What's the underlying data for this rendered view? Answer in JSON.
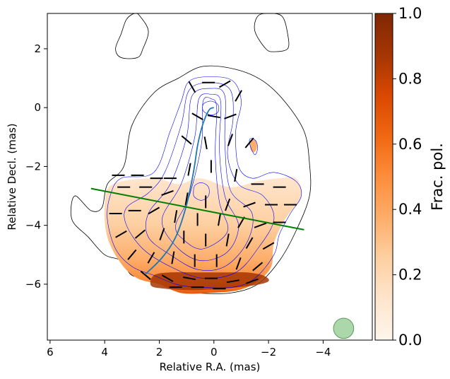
{
  "chart_data": {
    "type": "contour",
    "xlabel": "Relative R.A. (mas)",
    "ylabel": "Relative Decl. (mas)",
    "xlim": [
      6.1,
      -5.8
    ],
    "ylim": [
      -7.9,
      3.2
    ],
    "x_ticks": [
      6,
      4,
      2,
      0,
      -2,
      -4
    ],
    "x_tick_labels": [
      "6",
      "4",
      "2",
      "0",
      "−2",
      "−4"
    ],
    "y_ticks": [
      2,
      0,
      -2,
      -4,
      -6
    ],
    "y_tick_labels": [
      "2",
      "0",
      "−2",
      "−4",
      "−6"
    ],
    "colorbar": {
      "label": "Frac. pol.",
      "range": [
        0.0,
        1.0
      ],
      "ticks": [
        0.0,
        0.2,
        0.4,
        0.6,
        0.8,
        1.0
      ],
      "tick_labels": [
        "0.0",
        "0.2",
        "0.4",
        "0.6",
        "0.8",
        "1.0"
      ],
      "colormap": "Oranges",
      "color_low": "#fff5eb",
      "color_high": "#7f2704"
    },
    "outer_contour": [
      [
        4.1,
        -3.4
      ],
      [
        3.9,
        -2.6
      ],
      [
        3.3,
        -2.0
      ],
      [
        3.0,
        -0.6
      ],
      [
        2.2,
        0.5
      ],
      [
        1.3,
        1.0
      ],
      [
        0.4,
        1.4
      ],
      [
        -0.8,
        1.3
      ],
      [
        -1.8,
        0.9
      ],
      [
        -2.6,
        0.2
      ],
      [
        -3.3,
        -0.8
      ],
      [
        -3.5,
        -1.9
      ],
      [
        -3.5,
        -3.0
      ],
      [
        -3.0,
        -4.2
      ],
      [
        -2.4,
        -5.2
      ],
      [
        -1.6,
        -6.0
      ],
      [
        -0.6,
        -6.3
      ],
      [
        0.6,
        -6.3
      ],
      [
        1.4,
        -6.2
      ],
      [
        2.3,
        -5.8
      ],
      [
        3.0,
        -5.7
      ],
      [
        3.4,
        -5.2
      ],
      [
        4.0,
        -5.0
      ],
      [
        4.6,
        -4.4
      ],
      [
        5.2,
        -3.8
      ],
      [
        5.1,
        -3.0
      ],
      [
        4.5,
        -3.5
      ]
    ],
    "island_contours": [
      [
        [
          2.7,
          3.1
        ],
        [
          2.4,
          2.6
        ],
        [
          2.6,
          2.0
        ],
        [
          2.8,
          1.7
        ],
        [
          3.4,
          1.7
        ],
        [
          3.6,
          2.0
        ],
        [
          3.4,
          2.5
        ],
        [
          3.2,
          3.0
        ],
        [
          2.9,
          3.2
        ]
      ],
      [
        [
          -1.6,
          3.1
        ],
        [
          -1.5,
          2.6
        ],
        [
          -1.9,
          2.0
        ],
        [
          -2.2,
          1.9
        ],
        [
          -2.7,
          2.0
        ],
        [
          -2.7,
          2.5
        ],
        [
          -2.5,
          3.1
        ],
        [
          -2.0,
          3.2
        ]
      ]
    ],
    "inner_contours": [
      [
        [
          3.8,
          -3.0
        ],
        [
          3.4,
          -2.4
        ],
        [
          2.2,
          -2.2
        ],
        [
          1.6,
          -0.8
        ],
        [
          1.2,
          0.2
        ],
        [
          0.9,
          0.9
        ],
        [
          0.1,
          1.05
        ],
        [
          -0.7,
          0.9
        ],
        [
          -1.0,
          0.2
        ],
        [
          -0.8,
          -0.8
        ],
        [
          -0.9,
          -2.0
        ],
        [
          -1.4,
          -2.4
        ],
        [
          -2.2,
          -2.2
        ],
        [
          -3.0,
          -2.5
        ],
        [
          -3.2,
          -3.0
        ],
        [
          -2.8,
          -3.6
        ],
        [
          -2.4,
          -4.3
        ],
        [
          -2.2,
          -5.0
        ],
        [
          -1.5,
          -5.8
        ],
        [
          -0.7,
          -6.1
        ],
        [
          0.6,
          -6.1
        ],
        [
          1.4,
          -6.0
        ],
        [
          2.2,
          -5.7
        ],
        [
          3.0,
          -5.4
        ],
        [
          3.6,
          -4.8
        ],
        [
          3.9,
          -3.8
        ]
      ],
      [
        [
          3.2,
          -3.4
        ],
        [
          2.4,
          -2.9
        ],
        [
          1.8,
          -2.2
        ],
        [
          1.2,
          -0.6
        ],
        [
          0.9,
          0.6
        ],
        [
          0.1,
          0.85
        ],
        [
          -0.6,
          0.6
        ],
        [
          -0.7,
          -0.4
        ],
        [
          -0.5,
          -1.6
        ],
        [
          -0.9,
          -2.6
        ],
        [
          -1.8,
          -3.0
        ],
        [
          -2.2,
          -3.8
        ],
        [
          -1.6,
          -4.8
        ],
        [
          -0.8,
          -5.6
        ],
        [
          0.4,
          -5.8
        ],
        [
          1.6,
          -5.4
        ],
        [
          2.6,
          -4.8
        ],
        [
          3.2,
          -4.0
        ]
      ],
      [
        [
          2.4,
          -3.6
        ],
        [
          1.6,
          -2.6
        ],
        [
          1.0,
          -1.0
        ],
        [
          0.8,
          0.4
        ],
        [
          0.1,
          0.65
        ],
        [
          -0.4,
          0.4
        ],
        [
          -0.4,
          -1.2
        ],
        [
          -0.6,
          -2.8
        ],
        [
          -1.4,
          -3.6
        ],
        [
          -1.2,
          -4.6
        ],
        [
          -0.4,
          -5.4
        ],
        [
          0.6,
          -5.5
        ],
        [
          1.6,
          -5.0
        ],
        [
          2.4,
          -4.4
        ]
      ],
      [
        [
          1.9,
          -3.8
        ],
        [
          1.2,
          -2.6
        ],
        [
          0.7,
          -1.0
        ],
        [
          0.55,
          0.3
        ],
        [
          0.1,
          0.45
        ],
        [
          -0.25,
          0.2
        ],
        [
          -0.2,
          -1.4
        ],
        [
          -0.4,
          -3.0
        ],
        [
          -0.9,
          -4.0
        ],
        [
          -0.5,
          -4.9
        ],
        [
          0.5,
          -5.2
        ],
        [
          1.4,
          -4.7
        ]
      ],
      [
        [
          1.4,
          -4.0
        ],
        [
          0.9,
          -3.0
        ],
        [
          0.45,
          -1.2
        ],
        [
          0.4,
          0.2
        ],
        [
          0.1,
          0.3
        ],
        [
          -0.1,
          0.0
        ],
        [
          -0.05,
          -1.6
        ],
        [
          -0.2,
          -3.2
        ],
        [
          -0.5,
          -4.2
        ],
        [
          0.4,
          -4.8
        ],
        [
          1.1,
          -4.5
        ]
      ],
      [
        [
          0.42,
          0.0
        ],
        [
          0.35,
          0.15
        ],
        [
          0.1,
          0.22
        ],
        [
          -0.15,
          0.1
        ],
        [
          -0.15,
          -0.15
        ],
        [
          0.1,
          -0.25
        ],
        [
          0.35,
          -0.15
        ]
      ],
      [
        [
          0.75,
          -2.9
        ],
        [
          0.7,
          -2.65
        ],
        [
          0.45,
          -2.55
        ],
        [
          0.2,
          -2.7
        ],
        [
          0.2,
          -3.0
        ],
        [
          0.45,
          -3.15
        ],
        [
          0.7,
          -3.05
        ]
      ],
      [
        [
          -1.3,
          -1.1
        ],
        [
          -1.35,
          -1.35
        ],
        [
          -1.5,
          -1.6
        ],
        [
          -1.6,
          -1.4
        ],
        [
          -1.55,
          -1.15
        ],
        [
          -1.4,
          -1.05
        ]
      ]
    ],
    "polarized_region": [
      [
        4.0,
        -3.3
      ],
      [
        3.7,
        -2.6
      ],
      [
        2.2,
        -2.4
      ],
      [
        1.3,
        -2.6
      ],
      [
        0.5,
        -2.4
      ],
      [
        -0.6,
        -2.7
      ],
      [
        -1.6,
        -2.5
      ],
      [
        -2.4,
        -2.4
      ],
      [
        -3.0,
        -2.4
      ],
      [
        -3.2,
        -3.0
      ],
      [
        -2.6,
        -3.8
      ],
      [
        -2.2,
        -4.6
      ],
      [
        -2.1,
        -5.4
      ],
      [
        -1.6,
        -5.9
      ],
      [
        -0.9,
        -6.2
      ],
      [
        0.2,
        -6.3
      ],
      [
        1.2,
        -6.3
      ],
      [
        2.0,
        -6.0
      ],
      [
        2.8,
        -5.8
      ],
      [
        3.4,
        -5.3
      ],
      [
        3.9,
        -4.4
      ]
    ],
    "polarized_high_region": [
      [
        2.2,
        -5.7
      ],
      [
        1.6,
        -5.6
      ],
      [
        0.6,
        -5.6
      ],
      [
        -0.6,
        -5.6
      ],
      [
        -1.2,
        -5.6
      ],
      [
        -1.8,
        -5.7
      ],
      [
        -2.0,
        -5.9
      ],
      [
        -1.4,
        -6.05
      ],
      [
        -0.3,
        -6.15
      ],
      [
        0.8,
        -6.2
      ],
      [
        1.8,
        -6.15
      ],
      [
        2.3,
        -6.05
      ]
    ],
    "evpa_vectors": [
      [
        0.6,
        -0.3,
        -30
      ],
      [
        0.0,
        -0.3,
        -10
      ],
      [
        -0.6,
        -0.3,
        20
      ],
      [
        0.8,
        0.7,
        -60
      ],
      [
        0.2,
        0.85,
        0
      ],
      [
        -0.4,
        0.8,
        30
      ],
      [
        -0.9,
        0.4,
        60
      ],
      [
        1.0,
        -1.1,
        -40
      ],
      [
        0.3,
        -1.2,
        -80
      ],
      [
        -0.6,
        -1.1,
        70
      ],
      [
        -1.3,
        -1.2,
        50
      ],
      [
        1.6,
        -2.4,
        0
      ],
      [
        0.9,
        -2.1,
        80
      ],
      [
        0.1,
        -2.0,
        90
      ],
      [
        -0.8,
        -2.3,
        80
      ],
      [
        -1.6,
        -2.6,
        0
      ],
      [
        -2.4,
        -2.7,
        0
      ],
      [
        3.5,
        -2.3,
        0
      ],
      [
        2.8,
        -2.3,
        0
      ],
      [
        2.1,
        -2.4,
        0
      ],
      [
        3.3,
        -2.7,
        0
      ],
      [
        2.5,
        -2.7,
        0
      ],
      [
        1.7,
        -2.9,
        20
      ],
      [
        1.0,
        -3.1,
        80
      ],
      [
        0.3,
        -3.2,
        90
      ],
      [
        -0.5,
        -3.3,
        70
      ],
      [
        -1.3,
        -3.3,
        20
      ],
      [
        -2.1,
        -3.3,
        0
      ],
      [
        -2.8,
        -3.3,
        0
      ],
      [
        3.6,
        -3.6,
        0
      ],
      [
        2.9,
        -3.5,
        0
      ],
      [
        2.2,
        -3.5,
        30
      ],
      [
        1.4,
        -3.7,
        80
      ],
      [
        0.6,
        -3.8,
        90
      ],
      [
        -0.2,
        -3.8,
        80
      ],
      [
        -1.0,
        -3.9,
        60
      ],
      [
        -1.7,
        -4.0,
        20
      ],
      [
        -2.4,
        -3.9,
        0
      ],
      [
        3.4,
        -4.3,
        30
      ],
      [
        2.7,
        -4.3,
        40
      ],
      [
        1.9,
        -4.3,
        70
      ],
      [
        1.1,
        -4.4,
        90
      ],
      [
        0.3,
        -4.5,
        90
      ],
      [
        -0.5,
        -4.5,
        80
      ],
      [
        -1.3,
        -4.6,
        60
      ],
      [
        -2.0,
        -4.7,
        30
      ],
      [
        3.0,
        -5.0,
        50
      ],
      [
        2.3,
        -5.1,
        60
      ],
      [
        1.5,
        -5.1,
        80
      ],
      [
        0.7,
        -5.2,
        90
      ],
      [
        -0.1,
        -5.2,
        90
      ],
      [
        -0.9,
        -5.3,
        70
      ],
      [
        -1.6,
        -5.4,
        40
      ],
      [
        2.5,
        -5.7,
        -40
      ],
      [
        1.7,
        -5.8,
        -30
      ],
      [
        0.9,
        -5.8,
        -10
      ],
      [
        0.1,
        -5.8,
        0
      ],
      [
        -0.7,
        -5.9,
        10
      ],
      [
        -1.4,
        -5.9,
        20
      ],
      [
        1.4,
        -6.1,
        0
      ],
      [
        0.6,
        -6.1,
        0
      ],
      [
        -0.2,
        -6.15,
        0
      ]
    ],
    "ridge_line": [
      [
        2.5,
        -5.65
      ],
      [
        1.9,
        -5.1
      ],
      [
        1.4,
        -4.4
      ],
      [
        1.0,
        -3.3
      ],
      [
        0.75,
        -2.2
      ],
      [
        0.6,
        -1.3
      ],
      [
        0.45,
        -0.7
      ],
      [
        0.3,
        -0.3
      ],
      [
        0.15,
        -0.05
      ],
      [
        0.0,
        0.0
      ]
    ],
    "transverse_line": [
      [
        4.5,
        -2.75
      ],
      [
        -3.3,
        -4.15
      ]
    ],
    "beam": {
      "x": -4.75,
      "y": -7.5,
      "radius": 0.37
    }
  },
  "colors": {
    "outer_contour": "#000000",
    "inner_contour": "#0000ff",
    "ridge": "#1f77b4",
    "transverse": "#008000",
    "beam_fill": "#8fc98f",
    "beam_edge": "#5a9a5a",
    "vectors": "#000000"
  }
}
